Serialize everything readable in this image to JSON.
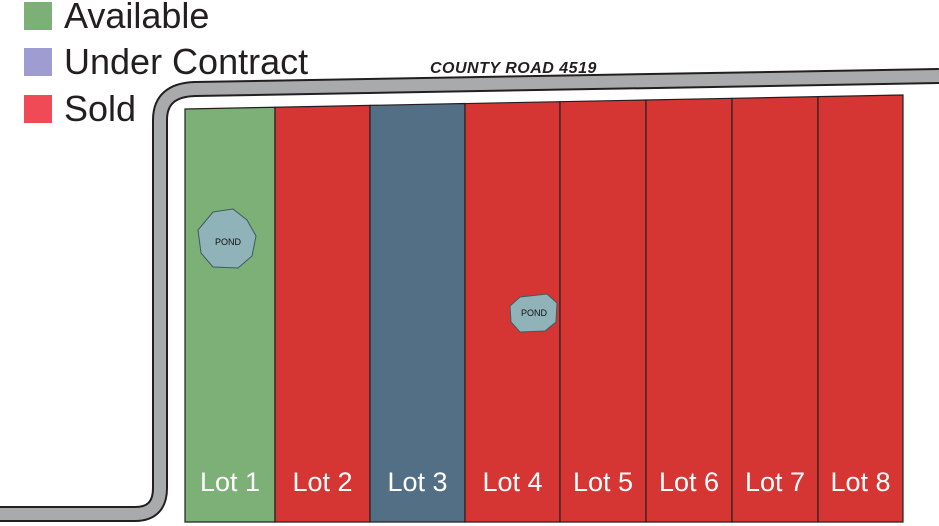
{
  "legend": [
    {
      "label": "Available",
      "color": "#7cb077"
    },
    {
      "label": "Under Contract",
      "color": "#9e9cd0"
    },
    {
      "label": "Sold",
      "color": "#ef4a55"
    }
  ],
  "road": {
    "name": "COUNTY ROAD 4519"
  },
  "lots": [
    {
      "label": "Lot 1",
      "status": "Available",
      "fill": "#7cb077"
    },
    {
      "label": "Lot 2",
      "status": "Sold",
      "fill": "#d63633"
    },
    {
      "label": "Lot 3",
      "status": "Under Contract",
      "fill": "#536f86"
    },
    {
      "label": "Lot 4",
      "status": "Sold",
      "fill": "#d63633"
    },
    {
      "label": "Lot 5",
      "status": "Sold",
      "fill": "#d63633"
    },
    {
      "label": "Lot 6",
      "status": "Sold",
      "fill": "#d63633"
    },
    {
      "label": "Lot 7",
      "status": "Sold",
      "fill": "#d63633"
    },
    {
      "label": "Lot 8",
      "status": "Sold",
      "fill": "#d63633"
    }
  ],
  "ponds": [
    {
      "label": "POND",
      "lot": "Lot 1"
    },
    {
      "label": "POND",
      "lot": "Lot 4"
    }
  ]
}
